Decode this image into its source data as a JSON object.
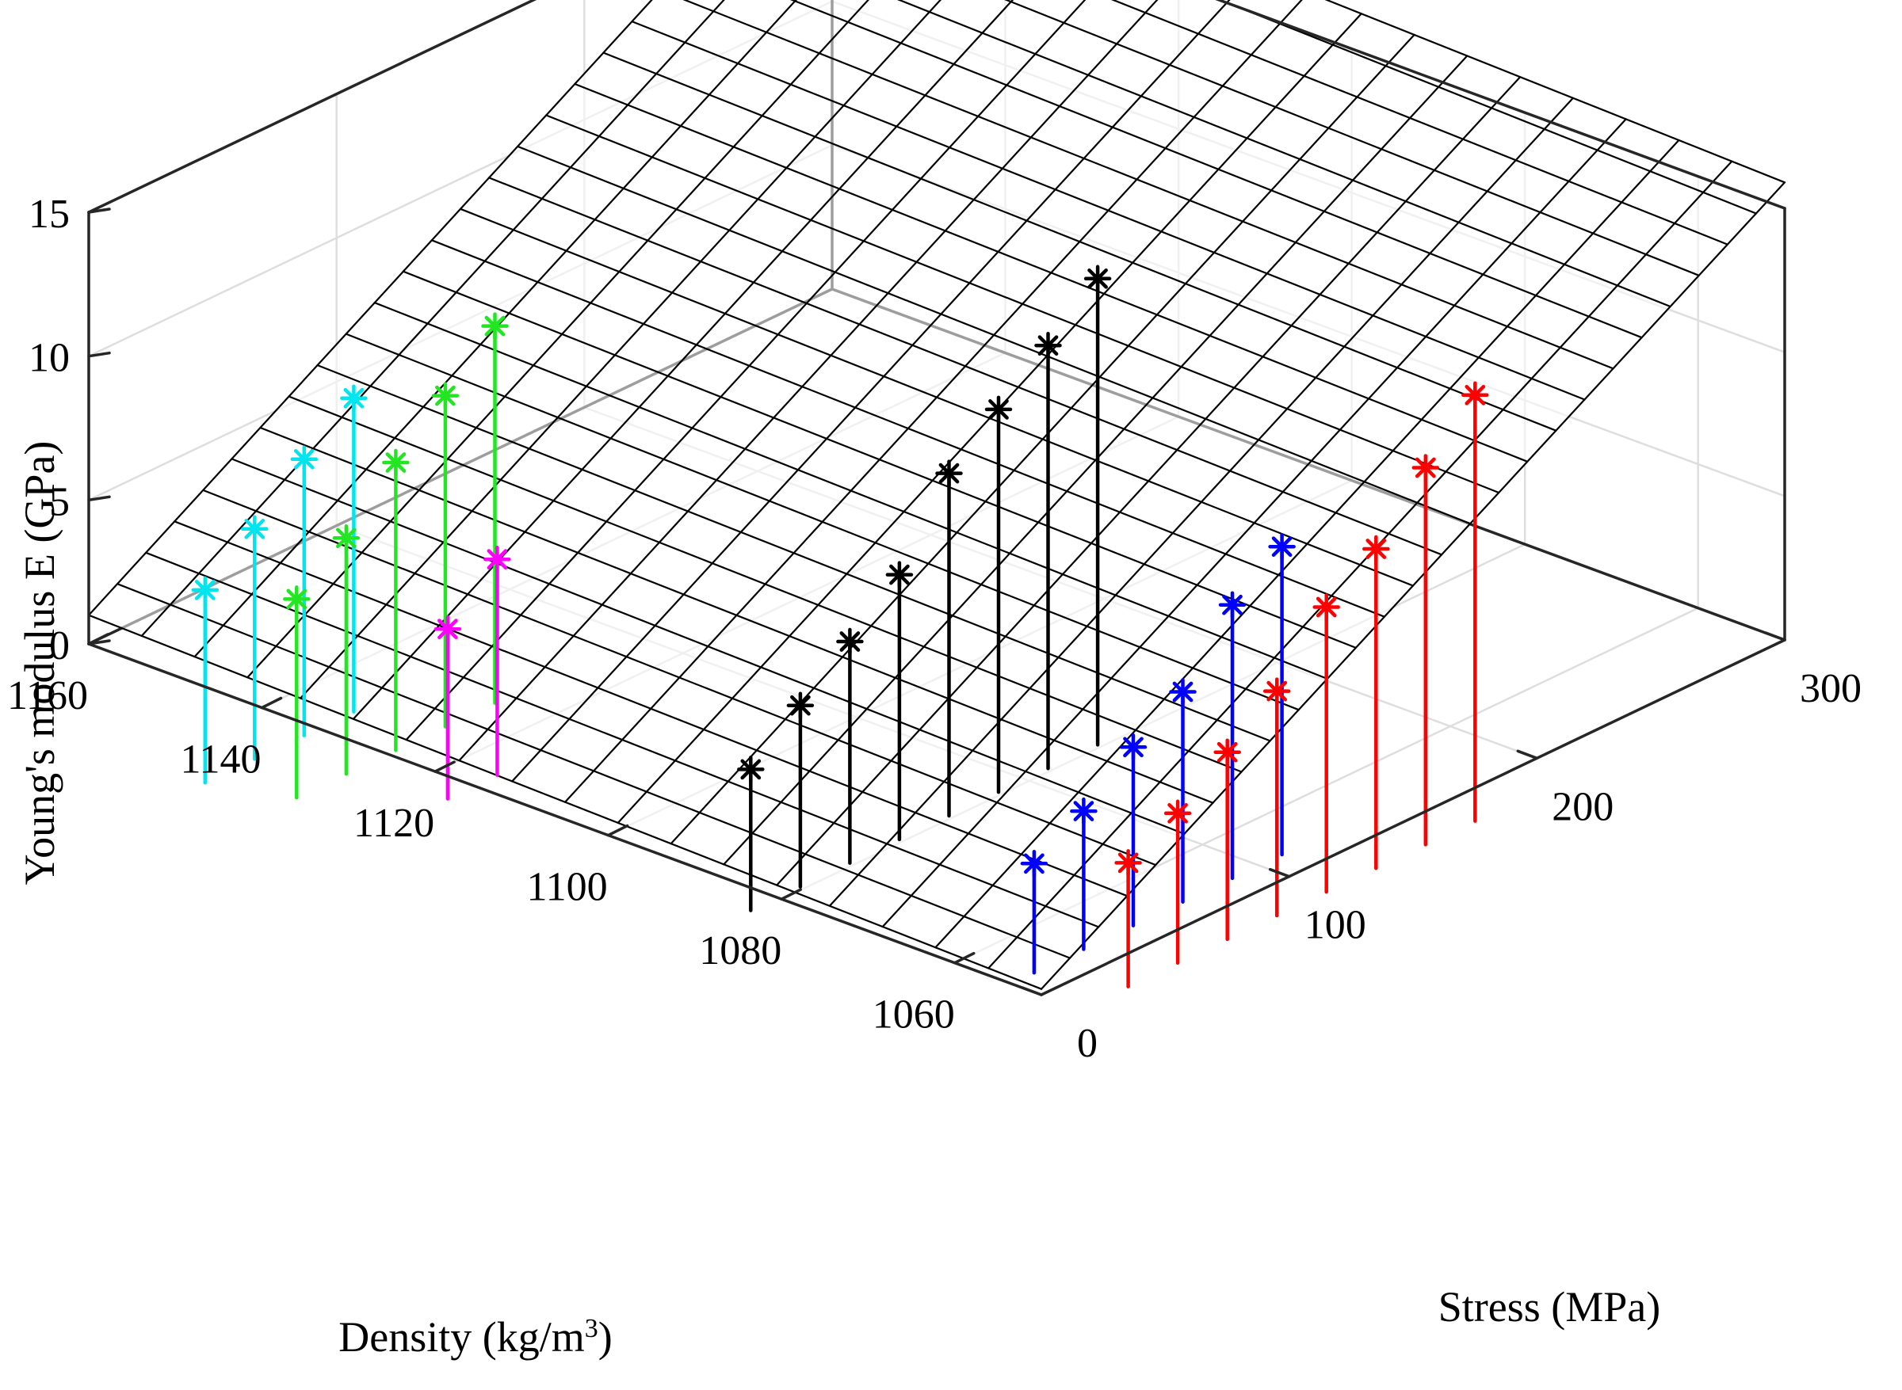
{
  "chart_data": {
    "type": "scatter3d",
    "title": "",
    "xlabel": "Stress (MPa)",
    "ylabel": {
      "main": "Density (kg/m",
      "superscript": "3",
      "close": ")"
    },
    "zlabel": "Young's modulus E (GPa)",
    "xlim": [
      0,
      300
    ],
    "ylim": [
      1050,
      1160
    ],
    "zlim": [
      0,
      15
    ],
    "x_ticks": [
      {
        "value": 0,
        "label": "0"
      },
      {
        "value": 100,
        "label": "100"
      },
      {
        "value": 200,
        "label": "200"
      },
      {
        "value": 300,
        "label": "300"
      }
    ],
    "y_ticks": [
      {
        "value": 1060,
        "label": "1060"
      },
      {
        "value": 1080,
        "label": "1080"
      },
      {
        "value": 1100,
        "label": "1100"
      },
      {
        "value": 1120,
        "label": "1120"
      },
      {
        "value": 1140,
        "label": "1140"
      },
      {
        "value": 1160,
        "label": "1160"
      }
    ],
    "z_ticks": [
      {
        "value": 0,
        "label": "0"
      },
      {
        "value": 5,
        "label": "5"
      },
      {
        "value": 10,
        "label": "10"
      },
      {
        "value": 15,
        "label": "15"
      }
    ],
    "grid": true,
    "surface": {
      "description": "fitted plane",
      "stress_range": [
        0,
        300
      ],
      "density_range": [
        1050,
        1160
      ],
      "grid_cols": 26,
      "grid_rows": 18,
      "corner_z": {
        "stress0_density1050": 0.2,
        "stress300_density1050": 15.9,
        "stress0_density1160": 1.0,
        "stress300_density1160": 16.9
      }
    },
    "series": [
      {
        "name": "cyan",
        "color": "#00e5ee",
        "points": [
          {
            "stress": 5,
            "density": 1148,
            "E": 3.0
          },
          {
            "stress": 25,
            "density": 1148,
            "E": 4.3
          },
          {
            "stress": 45,
            "density": 1148,
            "E": 5.9
          },
          {
            "stress": 65,
            "density": 1148,
            "E": 7.2
          }
        ]
      },
      {
        "name": "green",
        "color": "#22e622",
        "points": [
          {
            "stress": 14,
            "density": 1140,
            "E": 3.2
          },
          {
            "stress": 34,
            "density": 1140,
            "E": 4.5
          },
          {
            "stress": 54,
            "density": 1140,
            "E": 6.3
          },
          {
            "stress": 74,
            "density": 1140,
            "E": 7.8
          },
          {
            "stress": 94,
            "density": 1140,
            "E": 9.4
          }
        ]
      },
      {
        "name": "magenta",
        "color": "#ff00ff",
        "points": [
          {
            "stress": 40,
            "density": 1130,
            "E": 2.2
          },
          {
            "stress": 60,
            "density": 1130,
            "E": 3.8
          }
        ]
      },
      {
        "name": "black",
        "color": "#000000",
        "points": [
          {
            "stress": 40,
            "density": 1095,
            "E": 1.2
          },
          {
            "stress": 60,
            "density": 1095,
            "E": 2.6
          },
          {
            "stress": 80,
            "density": 1095,
            "E": 4.0
          },
          {
            "stress": 100,
            "density": 1095,
            "E": 5.5
          },
          {
            "stress": 120,
            "density": 1095,
            "E": 8.2
          },
          {
            "stress": 140,
            "density": 1095,
            "E": 9.6
          },
          {
            "stress": 160,
            "density": 1095,
            "E": 11.0
          },
          {
            "stress": 180,
            "density": 1095,
            "E": 12.5
          }
        ]
      },
      {
        "name": "blue",
        "color": "#0000ff",
        "points": [
          {
            "stress": 60,
            "density": 1068,
            "E": 0.1
          },
          {
            "stress": 80,
            "density": 1068,
            "E": 1.1
          },
          {
            "stress": 100,
            "density": 1068,
            "E": 2.5
          },
          {
            "stress": 120,
            "density": 1068,
            "E": 3.6
          },
          {
            "stress": 140,
            "density": 1068,
            "E": 5.8
          },
          {
            "stress": 160,
            "density": 1068,
            "E": 7.0
          }
        ]
      },
      {
        "name": "red",
        "color": "#ff0000",
        "points": [
          {
            "stress": 70,
            "density": 1060,
            "E": 0.6
          },
          {
            "stress": 90,
            "density": 1060,
            "E": 1.5
          },
          {
            "stress": 110,
            "density": 1060,
            "E": 2.8
          },
          {
            "stress": 130,
            "density": 1060,
            "E": 4.1
          },
          {
            "stress": 150,
            "density": 1060,
            "E": 6.2
          },
          {
            "stress": 170,
            "density": 1060,
            "E": 7.4
          },
          {
            "stress": 190,
            "density": 1060,
            "E": 9.4
          },
          {
            "stress": 210,
            "density": 1060,
            "E": 11.1
          }
        ]
      }
    ]
  }
}
